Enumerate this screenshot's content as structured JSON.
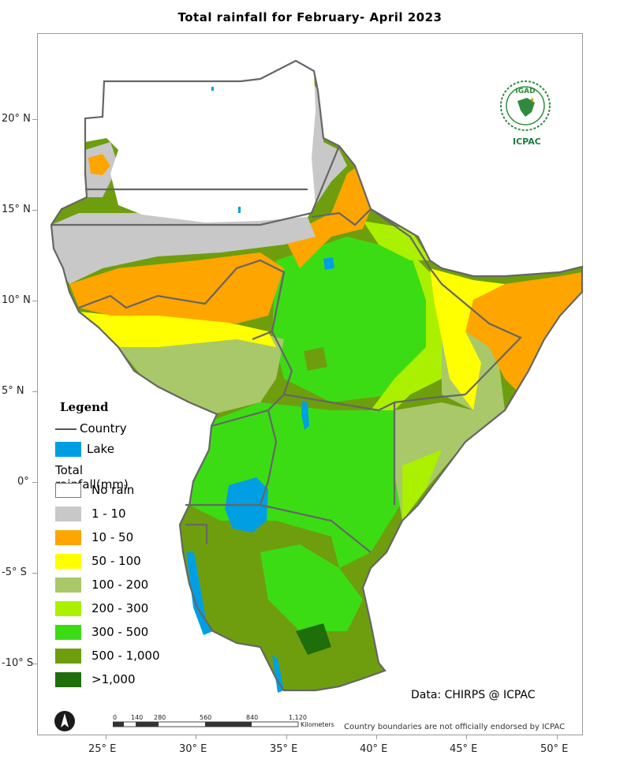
{
  "title": "Total rainfall  for  February- April  2023",
  "axes": {
    "x_ticks": [
      "25° E",
      "30° E",
      "35° E",
      "40° E",
      "45° E",
      "50° E"
    ],
    "y_ticks": [
      "20° N",
      "15° N",
      "10° N",
      "5° N",
      "0°",
      "-5° S",
      "-10° S"
    ]
  },
  "legend": {
    "title": "Legend",
    "country_label": "Country",
    "lake_label": "Lake",
    "rainfall_heading": "Total rainfall(mm)",
    "classes": [
      {
        "label": "No rain",
        "color": "#ffffff"
      },
      {
        "label": "1 - 10",
        "color": "#c8c8c8"
      },
      {
        "label": "10 - 50",
        "color": "#ffa500"
      },
      {
        "label": "50 - 100",
        "color": "#ffff00"
      },
      {
        "label": "100 - 200",
        "color": "#a8c86a"
      },
      {
        "label": "200 - 300",
        "color": "#aaf000"
      },
      {
        "label": "300 - 500",
        "color": "#3cdc14"
      },
      {
        "label": "500 - 1,000",
        "color": "#6e9e0e"
      },
      {
        "label": ">1,000",
        "color": "#1e6e0a"
      }
    ],
    "lake_color": "#009fe3",
    "country_line_color": "#666666"
  },
  "source_text": "Data: CHIRPS @ ICPAC",
  "disclaimer": "Country boundaries are not officially endorsed by ICPAC",
  "scale_bar": {
    "ticks": [
      "0",
      "140",
      "280",
      "560",
      "840",
      "1,120"
    ],
    "unit": "Kilometers"
  },
  "logo": {
    "top_text": "IGAD",
    "bottom_text": "ICPAC"
  },
  "icons": {
    "north_arrow": "north-arrow-icon",
    "logo": "igad-icpac-logo-icon"
  }
}
